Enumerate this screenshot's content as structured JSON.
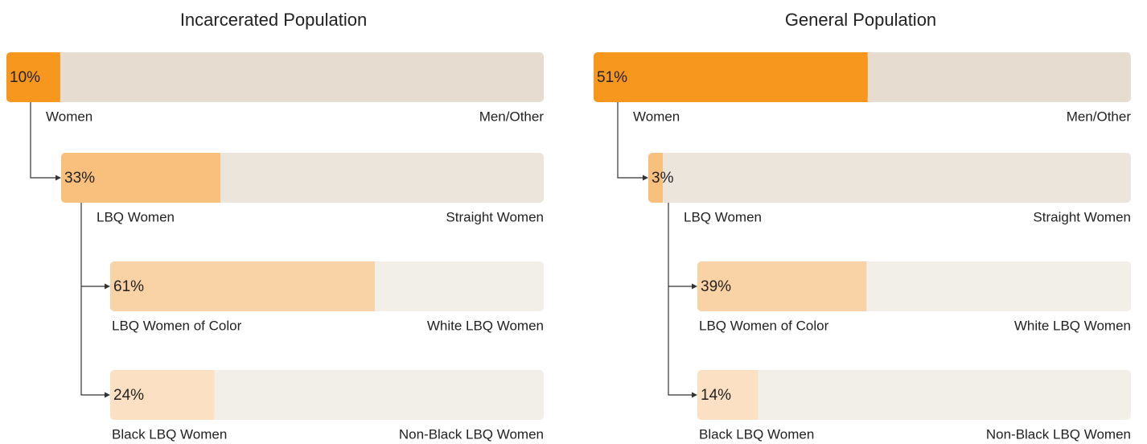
{
  "chart_data": [
    {
      "type": "nested-bar",
      "title": "Incarcerated Population",
      "categories": [
        "Women",
        "LBQ Women",
        "LBQ Women of Color",
        "Black LBQ Women"
      ],
      "rest_labels": [
        "Men/Other",
        "Straight Women",
        "White LBQ Women",
        "Non-Black LBQ Women"
      ],
      "values": [
        10,
        33,
        61,
        24
      ],
      "value_labels": [
        "10%",
        "33%",
        "61%",
        "24%"
      ],
      "xlim": [
        0,
        100
      ],
      "colors": [
        "#f7971e",
        "#f9bf7c",
        "#f9d2a6",
        "#fbe0c3"
      ],
      "track_colors": [
        "#e6ddd0",
        "#ece5dc",
        "#f2eee8",
        "#f2eee8"
      ]
    },
    {
      "type": "nested-bar",
      "title": "General  Population",
      "categories": [
        "Women",
        "LBQ Women",
        "LBQ Women of Color",
        "Black LBQ Women"
      ],
      "rest_labels": [
        "Men/Other",
        "Straight Women",
        "White LBQ Women",
        "Non-Black LBQ Women"
      ],
      "values": [
        51,
        3,
        39,
        14
      ],
      "value_labels": [
        "51%",
        "3%",
        "39%",
        "14%"
      ],
      "xlim": [
        0,
        100
      ],
      "colors": [
        "#f7971e",
        "#f9bf7c",
        "#f9d2a6",
        "#fbe0c3"
      ],
      "track_colors": [
        "#e6ddd0",
        "#ece5dc",
        "#f2eee8",
        "#f2eee8"
      ]
    }
  ]
}
